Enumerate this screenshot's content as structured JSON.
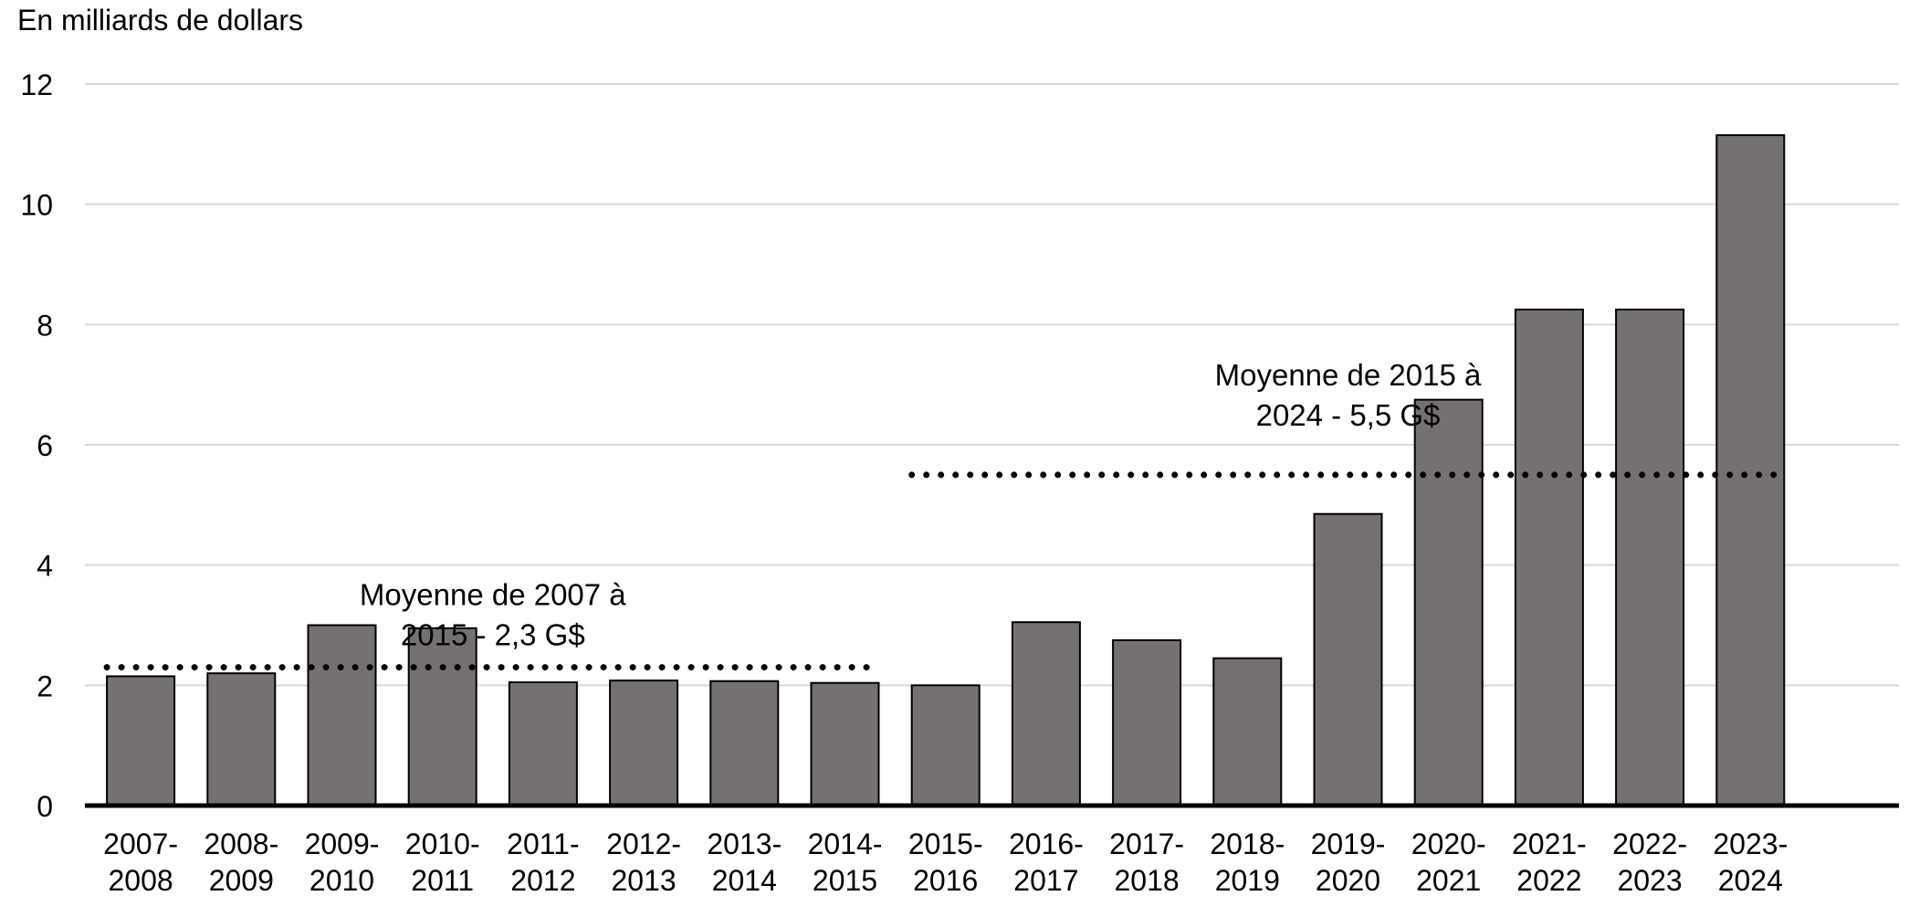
{
  "chart_data": {
    "type": "bar",
    "title": "",
    "xlabel": "",
    "ylabel": "En milliards de dollars",
    "ylim": [
      0,
      12
    ],
    "yticks": [
      0,
      2,
      4,
      6,
      8,
      10,
      12
    ],
    "grid": "horizontal",
    "categories": [
      [
        "2007-",
        "2008"
      ],
      [
        "2008-",
        "2009"
      ],
      [
        "2009-",
        "2010"
      ],
      [
        "2010-",
        "2011"
      ],
      [
        "2011-",
        "2012"
      ],
      [
        "2012-",
        "2013"
      ],
      [
        "2013-",
        "2014"
      ],
      [
        "2014-",
        "2015"
      ],
      [
        "2015-",
        "2016"
      ],
      [
        "2016-",
        "2017"
      ],
      [
        "2017-",
        "2018"
      ],
      [
        "2018-",
        "2019"
      ],
      [
        "2019-",
        "2020"
      ],
      [
        "2020-",
        "2021"
      ],
      [
        "2021-",
        "2022"
      ],
      [
        "2022-",
        "2023"
      ],
      [
        "2023-",
        "2024"
      ]
    ],
    "values": [
      2.15,
      2.2,
      3.0,
      2.95,
      2.05,
      2.08,
      2.07,
      2.04,
      2.0,
      3.05,
      2.75,
      2.45,
      4.85,
      6.75,
      8.25,
      8.25,
      11.15
    ],
    "bar_color": "#767171",
    "reference_lines": [
      {
        "label": [
          "Moyenne de 2007 à",
          "2015 - 2,3 G$"
        ],
        "value": 2.3,
        "from_category": 0,
        "to_category": 7,
        "style": "dotted"
      },
      {
        "label": [
          "Moyenne de 2015 à",
          "2024 - 5,5 G$"
        ],
        "value": 5.5,
        "from_category": 8,
        "to_category": 16,
        "style": "dotted"
      }
    ]
  }
}
